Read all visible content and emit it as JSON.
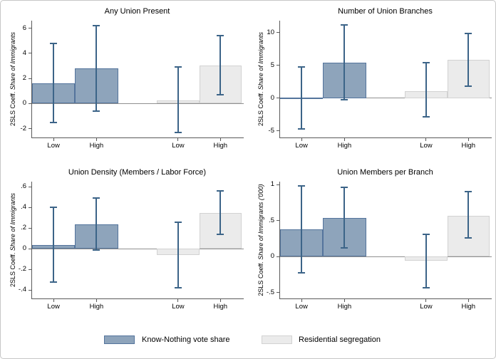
{
  "figure": {
    "background": "#ffffff",
    "border_color": "#c6c6c6"
  },
  "colors": {
    "know_nothing_fill": "#8ea4bb",
    "know_nothing_border": "#54749c",
    "segregation_fill": "#ebebeb",
    "segregation_border": "#d2d2d2",
    "error_bar": "#3c6488",
    "axis": "#5a5a5a",
    "zero_line": "#909090"
  },
  "legend": {
    "position": "bottom-center",
    "items": [
      {
        "series": "know_nothing",
        "label": "Know-Nothing vote share",
        "swatch_color": "#8ea4bb"
      },
      {
        "series": "segregation",
        "label": "Residential segregation",
        "swatch_color": "#ebebeb"
      }
    ]
  },
  "chart_data": [
    {
      "type": "bar",
      "title": "Any Union Present",
      "ylabel_prefix": "2SLS Coeff.",
      "ylabel_italic": "Share of Immigrants",
      "xlabel": "",
      "ylim": [
        -2.7,
        6.6
      ],
      "yticks": [
        -2,
        0,
        2,
        4,
        6
      ],
      "ytick_labels": [
        "-2",
        "0",
        "2",
        "4",
        "6"
      ],
      "grid": false,
      "categories": [
        "Low",
        "High",
        "Low",
        "High"
      ],
      "bars": [
        {
          "series": "know_nothing",
          "label": "Low",
          "value": 1.6,
          "ci_low": -1.5,
          "ci_high": 4.8
        },
        {
          "series": "know_nothing",
          "label": "High",
          "value": 2.8,
          "ci_low": -0.6,
          "ci_high": 6.2
        },
        {
          "series": "segregation",
          "label": "Low",
          "value": 0.25,
          "ci_low": -2.3,
          "ci_high": 2.9
        },
        {
          "series": "segregation",
          "label": "High",
          "value": 3.0,
          "ci_low": 0.7,
          "ci_high": 5.4
        }
      ]
    },
    {
      "type": "bar",
      "title": "Number of Union Branches",
      "ylabel_prefix": "2SLS Coeff.",
      "ylabel_italic": "Share of Immigrants",
      "xlabel": "",
      "ylim": [
        -6.0,
        11.8
      ],
      "yticks": [
        -5,
        0,
        5,
        10
      ],
      "ytick_labels": [
        "-5",
        "0",
        "5",
        "10"
      ],
      "grid": false,
      "categories": [
        "Low",
        "High",
        "Low",
        "High"
      ],
      "bars": [
        {
          "series": "know_nothing",
          "label": "Low",
          "value": 0.05,
          "ci_low": -4.7,
          "ci_high": 4.7
        },
        {
          "series": "know_nothing",
          "label": "High",
          "value": 5.4,
          "ci_low": -0.3,
          "ci_high": 11.1
        },
        {
          "series": "segregation",
          "label": "Low",
          "value": 1.1,
          "ci_low": -2.9,
          "ci_high": 5.4
        },
        {
          "series": "segregation",
          "label": "High",
          "value": 5.8,
          "ci_low": 1.8,
          "ci_high": 9.9
        }
      ]
    },
    {
      "type": "bar",
      "title": "Union Density (Members / Labor Force)",
      "ylabel_prefix": "2SLS Coeff.",
      "ylabel_italic": "Share of Immigrants",
      "xlabel": "",
      "ylim": [
        -0.48,
        0.65
      ],
      "yticks": [
        -0.4,
        -0.2,
        0,
        0.2,
        0.4,
        0.6
      ],
      "ytick_labels": [
        "-.4",
        "-.2",
        "0",
        ".2",
        ".4",
        ".6"
      ],
      "grid": false,
      "categories": [
        "Low",
        "High",
        "Low",
        "High"
      ],
      "bars": [
        {
          "series": "know_nothing",
          "label": "Low",
          "value": 0.04,
          "ci_low": -0.32,
          "ci_high": 0.4
        },
        {
          "series": "know_nothing",
          "label": "High",
          "value": 0.24,
          "ci_low": -0.01,
          "ci_high": 0.49
        },
        {
          "series": "segregation",
          "label": "Low",
          "value": -0.06,
          "ci_low": -0.38,
          "ci_high": 0.26
        },
        {
          "series": "segregation",
          "label": "High",
          "value": 0.35,
          "ci_low": 0.14,
          "ci_high": 0.56
        }
      ]
    },
    {
      "type": "bar",
      "title": "Union Members per Branch",
      "ylabel_prefix": "2SLS Coeff.",
      "ylabel_italic": "Share of Immigrants ('000)",
      "xlabel": "",
      "ylim": [
        -0.58,
        1.04
      ],
      "yticks": [
        -0.5,
        0,
        0.5,
        1
      ],
      "ytick_labels": [
        "-.5",
        "0",
        ".5",
        "1"
      ],
      "grid": false,
      "categories": [
        "Low",
        "High",
        "Low",
        "High"
      ],
      "bars": [
        {
          "series": "know_nothing",
          "label": "Low",
          "value": 0.38,
          "ci_low": -0.22,
          "ci_high": 0.98
        },
        {
          "series": "know_nothing",
          "label": "High",
          "value": 0.54,
          "ci_low": 0.12,
          "ci_high": 0.96
        },
        {
          "series": "segregation",
          "label": "Low",
          "value": -0.06,
          "ci_low": -0.43,
          "ci_high": 0.31
        },
        {
          "series": "segregation",
          "label": "High",
          "value": 0.57,
          "ci_low": 0.26,
          "ci_high": 0.9
        }
      ]
    }
  ]
}
